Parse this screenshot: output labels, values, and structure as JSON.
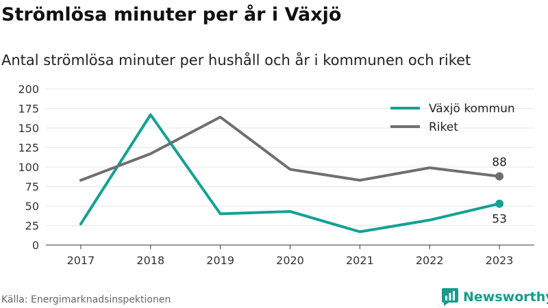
{
  "title": "Strömlösa minuter per år i Växjö",
  "subtitle": "Antal strömlösa minuter per hushåll och år i kommunen och riket",
  "source": "Källa: Energimarknadsinspektionen",
  "brand": {
    "name": "Newsworthy",
    "icon": "newsworthy-logo-icon",
    "color": "#159c8c"
  },
  "chart_data": {
    "type": "line",
    "title": "",
    "xlabel": "",
    "ylabel": "",
    "x": [
      "2017",
      "2018",
      "2019",
      "2020",
      "2021",
      "2022",
      "2023"
    ],
    "ylim": [
      0,
      200
    ],
    "yticks": [
      0,
      25,
      50,
      75,
      100,
      125,
      150,
      175,
      200
    ],
    "grid": true,
    "legend_position": "top-right",
    "series": [
      {
        "name": "Växjö kommun",
        "color": "#13a195",
        "values": [
          27,
          167,
          40,
          43,
          17,
          32,
          53
        ]
      },
      {
        "name": "Riket",
        "color": "#6e6e73",
        "values": [
          83,
          117,
          164,
          97,
          83,
          99,
          88
        ]
      }
    ],
    "end_labels": [
      {
        "series": "Växjö kommun",
        "text": "53"
      },
      {
        "series": "Riket",
        "text": "88"
      }
    ]
  }
}
